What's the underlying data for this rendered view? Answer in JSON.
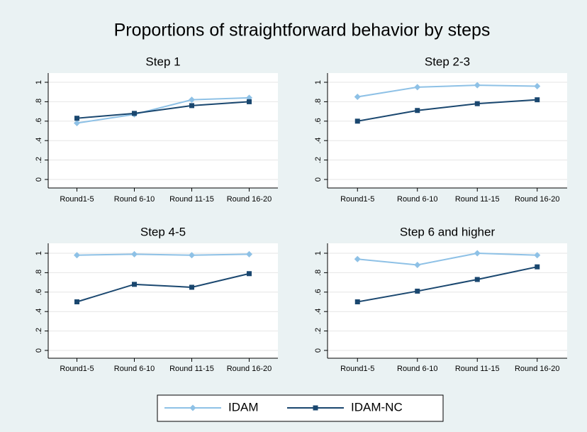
{
  "title": "Proportions of straightforward behavior by steps",
  "chart_data": [
    {
      "type": "line",
      "title": "Step 1",
      "categories": [
        "Round1-5",
        "Round 6-10",
        "Round 11-15",
        "Round 16-20"
      ],
      "series": [
        {
          "name": "IDAM",
          "color": "#8ec1e6",
          "marker": "diamond",
          "values": [
            0.58,
            0.67,
            0.82,
            0.84
          ]
        },
        {
          "name": "IDAM-NC",
          "color": "#1a476f",
          "marker": "square",
          "values": [
            0.63,
            0.68,
            0.76,
            0.8
          ]
        }
      ],
      "ylim": [
        0,
        1
      ],
      "yticks": [
        0,
        {
          "value": 0.2,
          "label": ".2"
        },
        {
          "value": 0.4,
          "label": ".4"
        },
        {
          "value": 0.6,
          "label": ".6"
        },
        {
          "value": 0.8,
          "label": ".8"
        },
        1
      ],
      "grid": true
    },
    {
      "type": "line",
      "title": "Step 2-3",
      "categories": [
        "Round1-5",
        "Round 6-10",
        "Round 11-15",
        "Round 16-20"
      ],
      "series": [
        {
          "name": "IDAM",
          "color": "#8ec1e6",
          "marker": "diamond",
          "values": [
            0.85,
            0.95,
            0.97,
            0.96
          ]
        },
        {
          "name": "IDAM-NC",
          "color": "#1a476f",
          "marker": "square",
          "values": [
            0.6,
            0.71,
            0.78,
            0.82
          ]
        }
      ],
      "ylim": [
        0,
        1
      ],
      "yticks": [
        0,
        {
          "value": 0.2,
          "label": ".2"
        },
        {
          "value": 0.4,
          "label": ".4"
        },
        {
          "value": 0.6,
          "label": ".6"
        },
        {
          "value": 0.8,
          "label": ".8"
        },
        1
      ],
      "grid": true
    },
    {
      "type": "line",
      "title": "Step 4-5",
      "categories": [
        "Round1-5",
        "Round 6-10",
        "Round 11-15",
        "Round 16-20"
      ],
      "series": [
        {
          "name": "IDAM",
          "color": "#8ec1e6",
          "marker": "diamond",
          "values": [
            0.98,
            0.99,
            0.98,
            0.99
          ]
        },
        {
          "name": "IDAM-NC",
          "color": "#1a476f",
          "marker": "square",
          "values": [
            0.5,
            0.68,
            0.65,
            0.79
          ]
        }
      ],
      "ylim": [
        0,
        1
      ],
      "yticks": [
        0,
        {
          "value": 0.2,
          "label": ".2"
        },
        {
          "value": 0.4,
          "label": ".4"
        },
        {
          "value": 0.6,
          "label": ".6"
        },
        {
          "value": 0.8,
          "label": ".8"
        },
        1
      ],
      "grid": true
    },
    {
      "type": "line",
      "title": "Step 6 and higher",
      "categories": [
        "Round1-5",
        "Round 6-10",
        "Round 11-15",
        "Round 16-20"
      ],
      "series": [
        {
          "name": "IDAM",
          "color": "#8ec1e6",
          "marker": "diamond",
          "values": [
            0.94,
            0.88,
            1.0,
            0.98
          ]
        },
        {
          "name": "IDAM-NC",
          "color": "#1a476f",
          "marker": "square",
          "values": [
            0.5,
            0.61,
            0.73,
            0.86
          ]
        }
      ],
      "ylim": [
        0,
        1
      ],
      "yticks": [
        0,
        {
          "value": 0.2,
          "label": ".2"
        },
        {
          "value": 0.4,
          "label": ".4"
        },
        {
          "value": 0.6,
          "label": ".6"
        },
        {
          "value": 0.8,
          "label": ".8"
        },
        1
      ],
      "grid": true
    }
  ]
}
